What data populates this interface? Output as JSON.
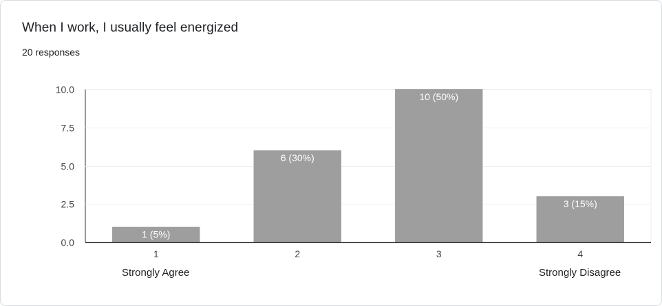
{
  "title": "When I work, I usually feel energized",
  "responses": "20 responses",
  "scale_labels": {
    "low": "Strongly Agree",
    "high": "Strongly Disagree"
  },
  "colors": {
    "bar": "#9e9e9e",
    "grid": "#eeeeee",
    "axis": "#333333"
  },
  "chart_data": {
    "type": "bar",
    "categories": [
      "1",
      "2",
      "3",
      "4"
    ],
    "values": [
      1,
      6,
      10,
      3
    ],
    "data_labels": [
      "1 (5%)",
      "6 (30%)",
      "10 (50%)",
      "3 (15%)"
    ],
    "yticks": [
      "0.0",
      "2.5",
      "5.0",
      "7.5",
      "10.0"
    ],
    "ylim": [
      0,
      10
    ],
    "grid": true
  }
}
